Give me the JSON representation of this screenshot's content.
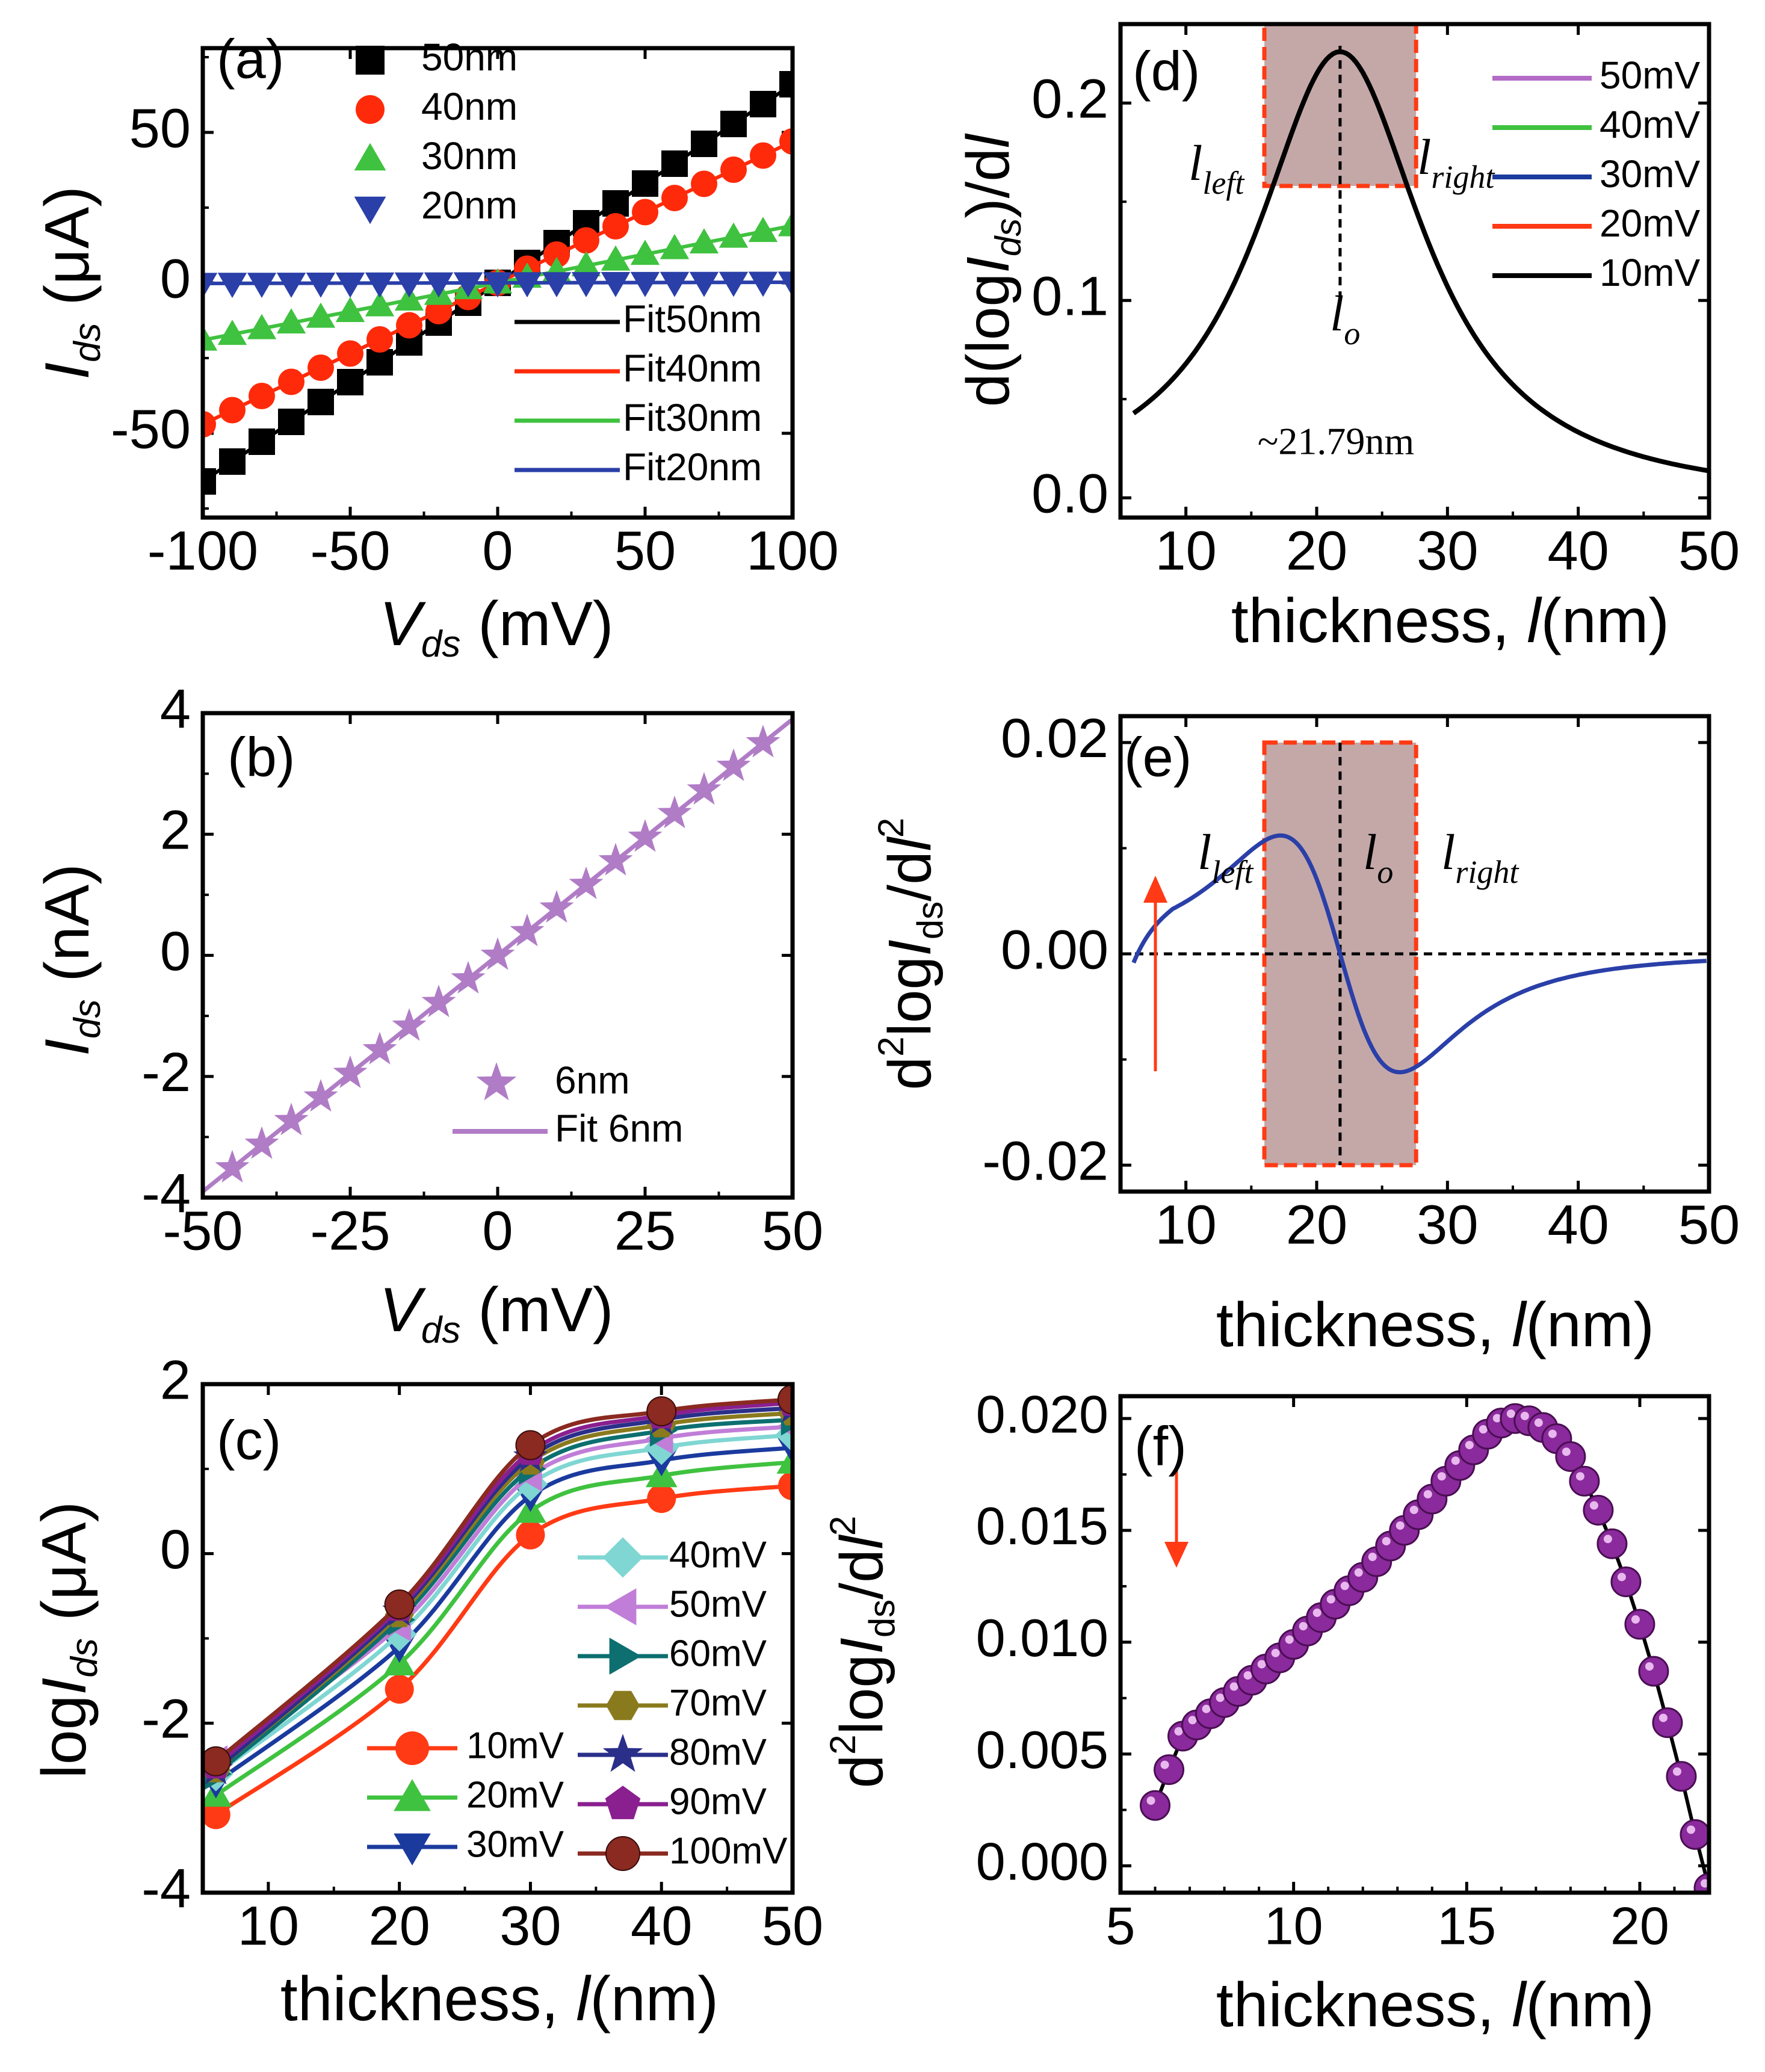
{
  "chart_data": [
    {
      "id": "a",
      "type": "scatter",
      "panel_label": "(a)",
      "xlabel_main": "V",
      "xlabel_sub": "ds",
      "xlabel_unit": "(mV)",
      "ylabel_main": "I",
      "ylabel_sub": "ds",
      "ylabel_unit": "(μA)",
      "xlim": [
        -100,
        100
      ],
      "ylim": [
        -78,
        78
      ],
      "xticks": [
        -100,
        -50,
        0,
        50,
        100
      ],
      "yticks": [
        -50,
        0,
        50
      ],
      "xtick_labels": [
        "-100",
        "-50",
        "0",
        "50",
        "100"
      ],
      "ytick_labels": [
        "-50",
        "0",
        "50"
      ],
      "legend": "top-left",
      "series": [
        {
          "name": "50nm",
          "marker": "square",
          "color": "#000000",
          "slope": 0.66,
          "fit_name": "Fit50nm"
        },
        {
          "name": "40nm",
          "marker": "circle",
          "color": "#ff2a0a",
          "slope": 0.47,
          "fit_name": "Fit40nm"
        },
        {
          "name": "30nm",
          "marker": "triangle",
          "color": "#3fc23f",
          "slope": 0.19,
          "fit_name": "Fit30nm"
        },
        {
          "name": "20nm",
          "marker": "triangle-down",
          "color": "#2a3fa8",
          "slope": 0.002,
          "fit_name": "Fit20nm"
        }
      ],
      "x_points": [
        -100,
        -90,
        -80,
        -70,
        -60,
        -50,
        -40,
        -30,
        -20,
        -10,
        0,
        10,
        20,
        30,
        40,
        50,
        60,
        70,
        80,
        90,
        100
      ]
    },
    {
      "id": "b",
      "type": "scatter",
      "panel_label": "(b)",
      "xlabel_main": "V",
      "xlabel_sub": "ds",
      "xlabel_unit": "(mV)",
      "ylabel_main": "I",
      "ylabel_sub": "ds",
      "ylabel_unit": "(nA)",
      "xlim": [
        -50,
        50
      ],
      "ylim": [
        -4,
        4
      ],
      "xticks": [
        -50,
        -25,
        0,
        25,
        50
      ],
      "yticks": [
        -4,
        -2,
        0,
        2,
        4
      ],
      "xtick_labels": [
        "-50",
        "-25",
        "0",
        "25",
        "50"
      ],
      "ytick_labels": [
        "-4",
        "-2",
        "0",
        "2",
        "4"
      ],
      "legend": "bottom-center",
      "series": [
        {
          "name": "6nm",
          "marker": "star",
          "color": "#b07cc6",
          "slope": 0.078,
          "fit_name": "Fit 6nm"
        }
      ],
      "x_points": [
        -45,
        -40,
        -35,
        -30,
        -25,
        -20,
        -15,
        -10,
        -5,
        0,
        5,
        10,
        15,
        20,
        25,
        30,
        35,
        40,
        45
      ]
    },
    {
      "id": "c",
      "type": "line",
      "panel_label": "(c)",
      "xlabel_main": "thickness, ",
      "xlabel_italic": "l",
      "xlabel_unit": "(nm)",
      "ylabel_main": "log",
      "ylabel_italic": "I",
      "ylabel_sub": "ds",
      "ylabel_unit": "(μA)",
      "xlim": [
        5,
        50
      ],
      "ylim": [
        -4,
        2
      ],
      "xticks": [
        10,
        20,
        30,
        40,
        50
      ],
      "yticks": [
        -4,
        -2,
        0,
        2
      ],
      "xtick_labels": [
        "10",
        "20",
        "30",
        "40",
        "50"
      ],
      "ytick_labels": [
        "-4",
        "-2",
        "0",
        "2"
      ],
      "x": [
        6,
        20,
        30,
        40,
        50
      ],
      "series": [
        {
          "name": "10mV",
          "color": "#ff3a14",
          "marker": "circle",
          "values": [
            -3.08,
            -1.6,
            0.22,
            0.65,
            0.8
          ]
        },
        {
          "name": "20mV",
          "color": "#3fc23f",
          "marker": "triangle",
          "values": [
            -2.85,
            -1.3,
            0.5,
            0.92,
            1.08
          ]
        },
        {
          "name": "30mV",
          "color": "#1a3a9e",
          "marker": "triangle-down",
          "values": [
            -2.7,
            -1.1,
            0.68,
            1.1,
            1.25
          ]
        },
        {
          "name": "40mV",
          "color": "#7fd6d2",
          "marker": "diamond",
          "values": [
            -2.6,
            -0.95,
            0.82,
            1.25,
            1.4
          ]
        },
        {
          "name": "50mV",
          "color": "#c07ed8",
          "marker": "triangle-left",
          "values": [
            -2.45,
            -0.85,
            0.92,
            1.36,
            1.5
          ]
        },
        {
          "name": "60mV",
          "color": "#0d6f6f",
          "marker": "triangle-right",
          "values": [
            -2.6,
            -0.78,
            1.0,
            1.45,
            1.58
          ]
        },
        {
          "name": "70mV",
          "color": "#8a7a1e",
          "marker": "hexagon",
          "values": [
            -2.55,
            -0.72,
            1.08,
            1.52,
            1.66
          ]
        },
        {
          "name": "80mV",
          "color": "#2a2f8a",
          "marker": "star",
          "values": [
            -2.55,
            -0.68,
            1.14,
            1.58,
            1.72
          ]
        },
        {
          "name": "90mV",
          "color": "#8a1f8f",
          "marker": "pentagon",
          "values": [
            -2.5,
            -0.64,
            1.2,
            1.63,
            1.78
          ]
        },
        {
          "name": "100mV",
          "color": "#8a2a20",
          "marker": "sphere",
          "values": [
            -2.45,
            -0.6,
            1.28,
            1.68,
            1.82
          ]
        }
      ]
    },
    {
      "id": "d",
      "type": "line",
      "panel_label": "(d)",
      "xlabel_main": "thickness, ",
      "xlabel_italic": "l",
      "xlabel_unit": "(nm)",
      "ylabel_main": "d(log",
      "ylabel_italic": "I",
      "ylabel_sub": "ds",
      "ylabel_tail": ")/d",
      "ylabel_tail_italic": "l",
      "xlim": [
        5,
        50
      ],
      "ylim": [
        -0.01,
        0.24
      ],
      "xticks": [
        10,
        20,
        30,
        40,
        50
      ],
      "yticks": [
        0.0,
        0.1,
        0.2
      ],
      "xtick_labels": [
        "10",
        "20",
        "30",
        "40",
        "50"
      ],
      "ytick_labels": [
        "0.0",
        "0.1",
        "0.2"
      ],
      "peak_x": 21.79,
      "peak_y": 0.229,
      "baseline": -0.003,
      "shade_x": [
        16,
        27.6
      ],
      "shade_y": [
        0.158,
        0.243
      ],
      "annotations": {
        "left": "l",
        "left_sub": "left",
        "right": "l",
        "right_sub": "right",
        "center": "l",
        "center_sub": "o",
        "value": "~21.79nm"
      },
      "series": [
        {
          "name": "50mV",
          "color": "#b36bc6"
        },
        {
          "name": "40mV",
          "color": "#3fc23f"
        },
        {
          "name": "30mV",
          "color": "#1a3a9e"
        },
        {
          "name": "20mV",
          "color": "#ff3a14"
        },
        {
          "name": "10mV",
          "color": "#000000"
        }
      ]
    },
    {
      "id": "e",
      "type": "line",
      "panel_label": "(e)",
      "xlabel_main": "thickness, ",
      "xlabel_italic": "l",
      "xlabel_unit": "(nm)",
      "ylabel_sup": "2",
      "ylabel_main": "d",
      "ylabel_mid": "log",
      "ylabel_italic": "I",
      "ylabel_sub": "ds",
      "ylabel_tail": "/d",
      "ylabel_tail_italic": "l",
      "ylabel_tail_sup": "2",
      "xlim": [
        5,
        50
      ],
      "ylim": [
        -0.0225,
        0.0225
      ],
      "xticks": [
        10,
        20,
        30,
        40,
        50
      ],
      "yticks": [
        -0.02,
        0.0,
        0.02
      ],
      "xtick_labels": [
        "10",
        "20",
        "30",
        "40",
        "50"
      ],
      "ytick_labels": [
        "-0.02",
        "0.00",
        "0.02"
      ],
      "shade_x": [
        16,
        27.6
      ],
      "shade_y": [
        -0.02,
        0.02
      ],
      "zero_cross_x": 21.79,
      "curve_color": "#2a3fa8",
      "annotations": {
        "left": "l",
        "left_sub": "left",
        "right": "l",
        "right_sub": "right",
        "center": "l",
        "center_sub": "o"
      }
    },
    {
      "id": "f",
      "type": "scatter",
      "panel_label": "(f)",
      "xlabel_main": "thickness, ",
      "xlabel_italic": "l",
      "xlabel_unit": "(nm)",
      "ylabel_sup": "2",
      "ylabel_main": "d",
      "ylabel_mid": "log",
      "ylabel_italic": "I",
      "ylabel_sub": "ds",
      "ylabel_tail": "/d",
      "ylabel_tail_italic": "l",
      "ylabel_tail_sup": "2",
      "xlim": [
        5,
        22
      ],
      "ylim": [
        -0.0012,
        0.021
      ],
      "xticks": [
        5,
        10,
        15,
        20
      ],
      "yticks": [
        0.0,
        0.005,
        0.01,
        0.015,
        0.02
      ],
      "xtick_labels": [
        "5",
        "10",
        "15",
        "20"
      ],
      "ytick_labels": [
        "0.000",
        "0.005",
        "0.010",
        "0.015",
        "0.020"
      ],
      "marker_color": "#8a2a9c",
      "x": [
        6.0,
        6.4,
        6.8,
        7.2,
        7.6,
        8.0,
        8.4,
        8.8,
        9.2,
        9.6,
        10.0,
        10.4,
        10.8,
        11.2,
        11.6,
        12.0,
        12.4,
        12.8,
        13.2,
        13.6,
        14.0,
        14.4,
        14.8,
        15.2,
        15.6,
        16.0,
        16.4,
        16.8,
        17.2,
        17.6,
        18.0,
        18.4,
        18.8,
        19.2,
        19.6,
        20.0,
        20.4,
        20.8,
        21.2,
        21.6,
        22.0
      ],
      "values": [
        0.0027,
        0.0043,
        0.0058,
        0.0063,
        0.0068,
        0.0073,
        0.0078,
        0.0083,
        0.0088,
        0.0093,
        0.0099,
        0.0105,
        0.0111,
        0.0117,
        0.0123,
        0.0129,
        0.0136,
        0.0143,
        0.015,
        0.0157,
        0.0164,
        0.0172,
        0.0179,
        0.0186,
        0.0193,
        0.0198,
        0.02,
        0.0199,
        0.0196,
        0.0191,
        0.0183,
        0.0172,
        0.0159,
        0.0144,
        0.0127,
        0.0108,
        0.0087,
        0.0064,
        0.004,
        0.0014,
        -0.001
      ]
    }
  ]
}
